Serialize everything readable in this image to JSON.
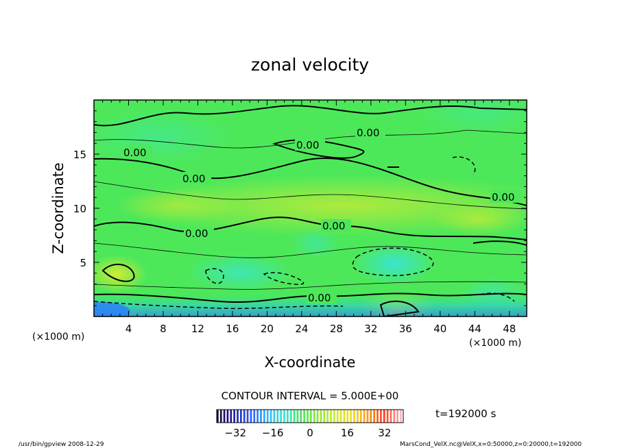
{
  "chart_data": {
    "type": "heatmap",
    "title": "zonal velocity",
    "xlabel": "X-coordinate",
    "ylabel": "Z-coordinate",
    "x_unit_left": "(×1000 m)",
    "x_unit_right": "(×1000 m)",
    "xlim": [
      0,
      50
    ],
    "ylim": [
      0,
      20
    ],
    "x_ticks": [
      4,
      8,
      12,
      16,
      20,
      24,
      28,
      32,
      36,
      40,
      44,
      48
    ],
    "y_ticks": [
      5,
      10,
      15
    ],
    "contour_interval_text": "CONTOUR INTERVAL = 5.000E+00",
    "contour_labels": [
      "0.00",
      "0.00",
      "0.00",
      "0.00",
      "0.00",
      "0.00",
      "0.00",
      "0.00"
    ],
    "colorbar": {
      "min": -40,
      "max": 40,
      "ticks": [
        -32,
        -16,
        0,
        16,
        32
      ],
      "colors": [
        "#1a0033",
        "#1f1fa8",
        "#2a5cff",
        "#2fb8ff",
        "#39e6d0",
        "#45e85a",
        "#8ae83a",
        "#c8ec2e",
        "#f0e020",
        "#ff9a1a",
        "#ff3a1a",
        "#ffb3c0"
      ]
    },
    "time_label": "t=192000 s",
    "grid": false
  },
  "footer": {
    "left": "/usr/bin/gpview  2008-12-29",
    "right": "MarsCond_VelX.nc@VelX,x=0:50000,z=0:20000,t=192000"
  }
}
